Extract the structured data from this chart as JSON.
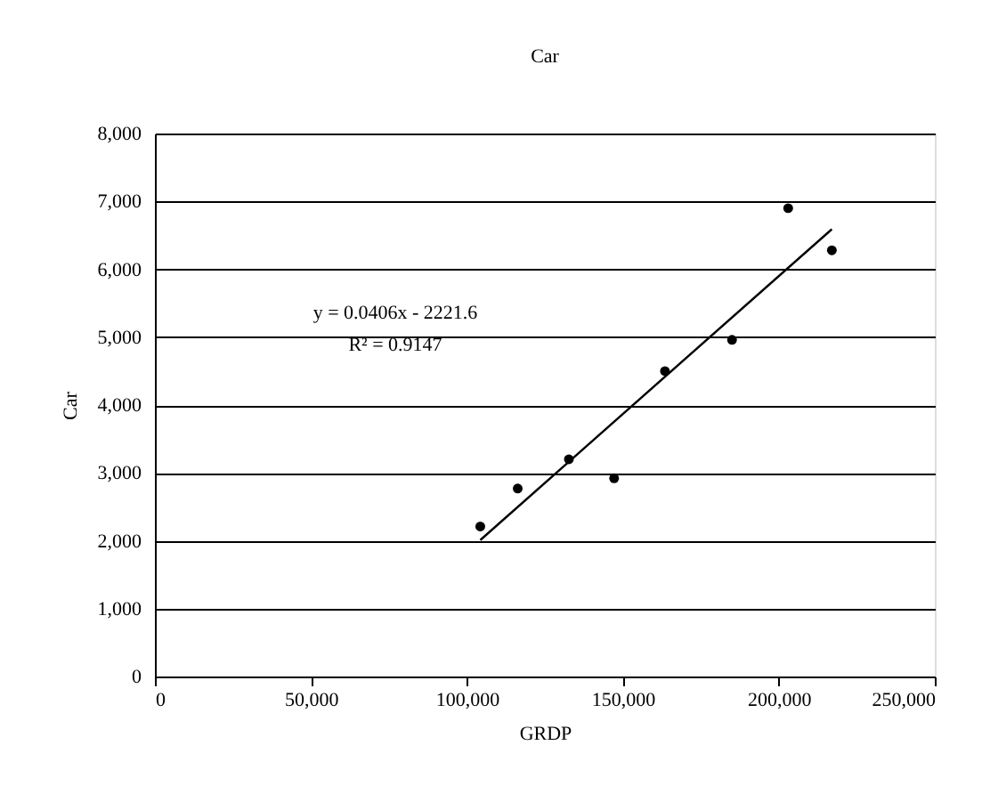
{
  "chart_data": {
    "type": "scatter",
    "title": "Car",
    "xlabel": "GRDP",
    "ylabel": "Car",
    "xlim": [
      0,
      250000
    ],
    "xticks": [
      {
        "value": 0,
        "label": "0"
      },
      {
        "value": 50000,
        "label": "50,000"
      },
      {
        "value": 100000,
        "label": "100,000"
      },
      {
        "value": 150000,
        "label": "150,000"
      },
      {
        "value": 200000,
        "label": "200,000"
      },
      {
        "value": 250000,
        "label": "250,000"
      }
    ],
    "ylim": [
      0,
      8000
    ],
    "yticks": [
      {
        "value": 0,
        "label": "0"
      },
      {
        "value": 1000,
        "label": "1,000"
      },
      {
        "value": 2000,
        "label": "2,000"
      },
      {
        "value": 3000,
        "label": "3,000"
      },
      {
        "value": 4000,
        "label": "4,000"
      },
      {
        "value": 5000,
        "label": "5,000"
      },
      {
        "value": 6000,
        "label": "6,000"
      },
      {
        "value": 7000,
        "label": "7,000"
      },
      {
        "value": 8000,
        "label": "8,000"
      }
    ],
    "grid": "y",
    "marker": "circle",
    "series": [
      {
        "color": "#000000",
        "x": [
          104300,
          116300,
          132700,
          147200,
          163500,
          185000,
          203000,
          217000
        ],
        "values": [
          2210,
          2770,
          3200,
          2920,
          4500,
          4960,
          6900,
          6280
        ]
      },
      {
        "type": "line",
        "color": "#000000",
        "marker": "none",
        "line_style": "solid",
        "x": [
          104300,
          217000
        ],
        "values": [
          2010,
          6590
        ]
      }
    ],
    "annotations": [
      "y = 0.0406x - 2221.6",
      "R² = 0.9147"
    ]
  }
}
